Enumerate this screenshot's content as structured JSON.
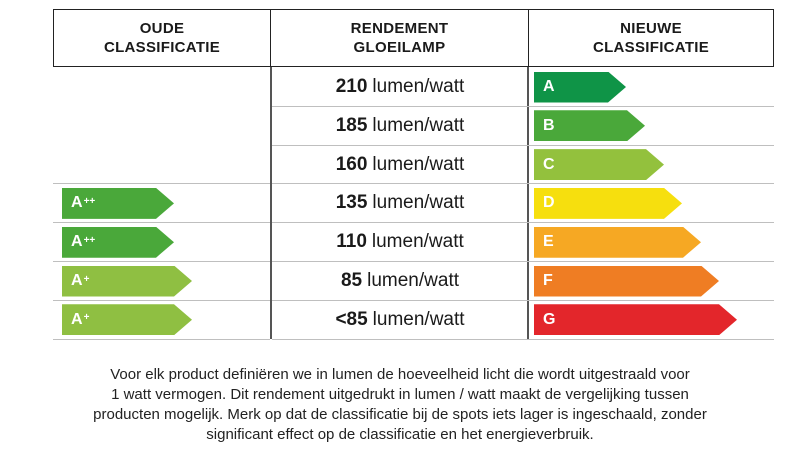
{
  "headers": {
    "old": [
      "OUDE",
      "CLASSIFICATIE"
    ],
    "middle": [
      "RENDEMENT",
      "GLOEILAMP"
    ],
    "new": [
      "NIEUWE",
      "CLASSIFICATIE"
    ]
  },
  "rows": [
    {
      "value": "210",
      "unit": "lumen/watt",
      "new_class": "A",
      "new_color": "#0f9447",
      "old_class": "",
      "old_sup": "",
      "old_color": ""
    },
    {
      "value": "185",
      "unit": "lumen/watt",
      "new_class": "B",
      "new_color": "#4aa83a",
      "old_class": "",
      "old_sup": "",
      "old_color": ""
    },
    {
      "value": "160",
      "unit": "lumen/watt",
      "new_class": "C",
      "new_color": "#93c13d",
      "old_class": "",
      "old_sup": "",
      "old_color": ""
    },
    {
      "value": "135",
      "unit": "lumen/watt",
      "new_class": "D",
      "new_color": "#f6df0e",
      "old_class": "A",
      "old_sup": "++",
      "old_color": "#4aa83a"
    },
    {
      "value": "110",
      "unit": "lumen/watt",
      "new_class": "E",
      "new_color": "#f6a823",
      "old_class": "A",
      "old_sup": "++",
      "old_color": "#4aa83a"
    },
    {
      "value": "85",
      "unit": "lumen/watt",
      "new_class": "F",
      "new_color": "#ef7d23",
      "old_class": "A",
      "old_sup": "+",
      "old_color": "#8fbf42"
    },
    {
      "value": "<85",
      "unit": "lumen/watt",
      "new_class": "G",
      "new_color": "#e3262b",
      "old_class": "A",
      "old_sup": "+",
      "old_color": "#8fbf42"
    }
  ],
  "footnote": [
    "Voor elk product definiëren we in lumen de hoeveelheid licht die wordt uitgestraald voor",
    "1 watt vermogen. Dit rendement uitgedrukt in lumen / watt maakt de vergelijking tussen",
    "producten mogelijk. Merk op dat de classificatie bij de spots iets lager is ingeschaald, zonder",
    "significant effect op de classificatie en het energieverbruik."
  ]
}
